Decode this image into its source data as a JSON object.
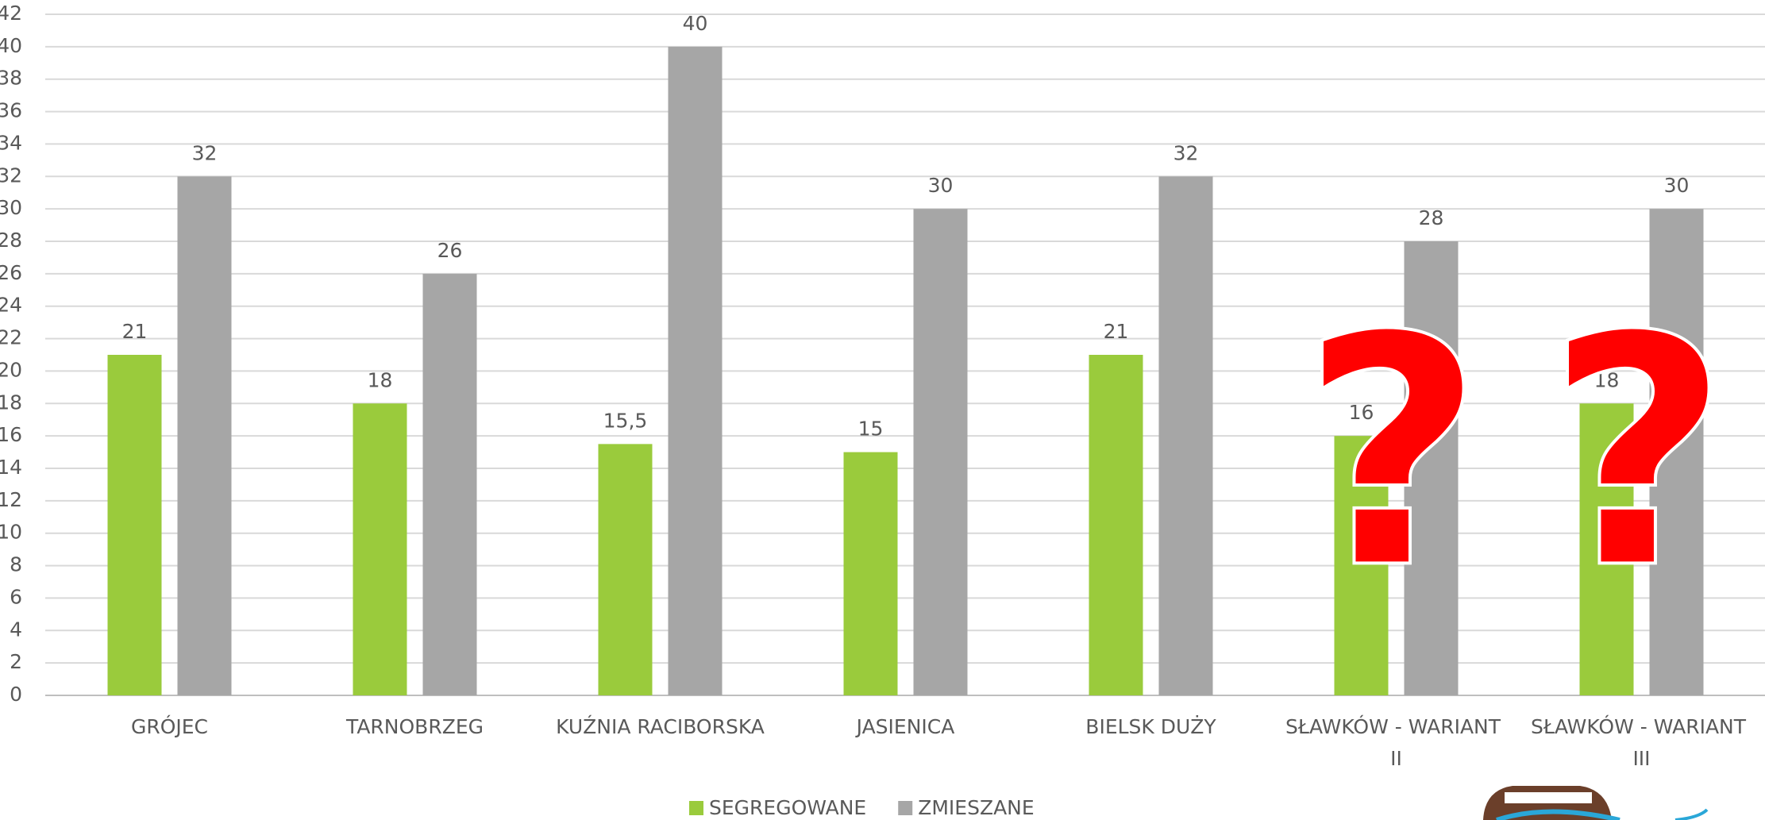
{
  "chart_data": {
    "type": "bar",
    "categories": [
      "GRÓJEC",
      "TARNOBRZEG",
      "KUŹNIA RACIBORSKA",
      "JASIENICA",
      "BIELSK DUŻY",
      "SŁAWKÓW - WARIANT II",
      "SŁAWKÓW - WARIANT III"
    ],
    "series": [
      {
        "name": "SEGREGOWANE",
        "color": "#9acb3c",
        "values": [
          21,
          18,
          15.5,
          15,
          21,
          16,
          18
        ],
        "value_labels": [
          "21",
          "18",
          "15,5",
          "15",
          "21",
          "16",
          "18"
        ]
      },
      {
        "name": "ZMIESZANE",
        "color": "#a6a6a6",
        "values": [
          32,
          26,
          40,
          30,
          32,
          28,
          30
        ]
      }
    ],
    "ylim": [
      0,
      42
    ],
    "yticks": [
      0,
      2,
      4,
      6,
      8,
      10,
      12,
      14,
      16,
      18,
      20,
      22,
      24,
      26,
      28,
      30,
      32,
      34,
      36,
      38,
      40,
      42
    ],
    "grid": true,
    "legend": "bottom",
    "annotations": [
      "?",
      "?"
    ]
  }
}
